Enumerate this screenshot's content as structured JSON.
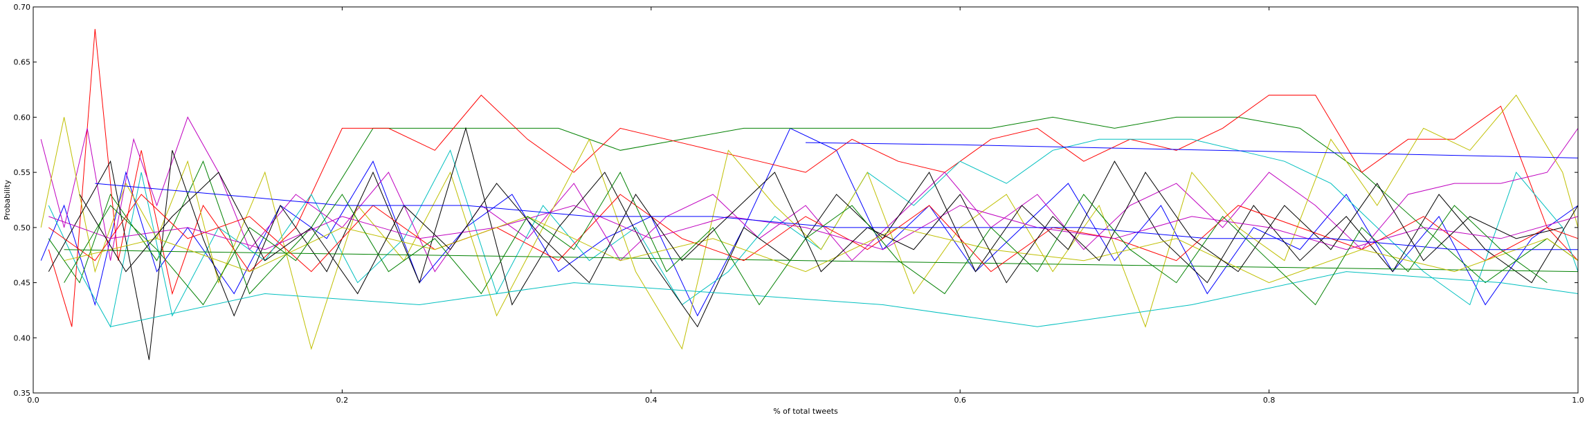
{
  "chart_data": {
    "type": "line",
    "title": "",
    "xlabel": "% of total tweets",
    "ylabel": "Probability",
    "xlim": [
      0.0,
      1.0
    ],
    "ylim": [
      0.35,
      0.7
    ],
    "x_ticks": [
      "0.0",
      "0.2",
      "0.4",
      "0.6",
      "0.8",
      "1.0"
    ],
    "y_ticks": [
      "0.35",
      "0.40",
      "0.45",
      "0.50",
      "0.55",
      "0.60",
      "0.65",
      "0.70"
    ],
    "grid": false,
    "legend": "none",
    "color_cycle": [
      "#0000ff",
      "#008000",
      "#ff0000",
      "#00bfbf",
      "#bf00bf",
      "#bfbf00",
      "#000000"
    ],
    "series": [
      {
        "x": [
          0.005,
          0.02,
          0.04,
          0.06,
          0.08,
          0.1,
          0.13,
          0.16,
          0.19,
          0.22,
          0.25,
          0.28,
          0.31,
          0.34,
          0.37,
          0.4,
          0.43,
          0.46,
          0.49,
          0.52,
          0.55,
          0.58,
          0.61,
          0.64,
          0.67,
          0.7,
          0.73,
          0.76,
          0.79,
          0.82,
          0.85,
          0.88,
          0.91,
          0.94,
          0.97,
          1.0
        ],
        "y": [
          0.47,
          0.52,
          0.43,
          0.55,
          0.46,
          0.5,
          0.44,
          0.52,
          0.49,
          0.56,
          0.45,
          0.5,
          0.53,
          0.46,
          0.49,
          0.51,
          0.42,
          0.5,
          0.59,
          0.57,
          0.48,
          0.52,
          0.46,
          0.5,
          0.54,
          0.47,
          0.52,
          0.44,
          0.5,
          0.48,
          0.53,
          0.46,
          0.51,
          0.43,
          0.49,
          0.52
        ]
      },
      {
        "x": [
          0.01,
          0.03,
          0.05,
          0.08,
          0.11,
          0.14,
          0.18,
          0.22,
          0.26,
          0.3,
          0.34,
          0.38,
          0.42,
          0.46,
          0.5,
          0.54,
          0.58,
          0.62,
          0.66,
          0.7,
          0.74,
          0.78,
          0.82,
          0.86,
          0.9,
          0.94,
          0.98,
          1.0
        ],
        "y": [
          0.49,
          0.45,
          0.53,
          0.47,
          0.56,
          0.44,
          0.5,
          0.59,
          0.59,
          0.59,
          0.59,
          0.57,
          0.58,
          0.59,
          0.59,
          0.59,
          0.59,
          0.59,
          0.6,
          0.59,
          0.6,
          0.6,
          0.59,
          0.55,
          0.5,
          0.45,
          0.49,
          0.47
        ]
      },
      {
        "x": [
          0.01,
          0.025,
          0.04,
          0.055,
          0.07,
          0.09,
          0.11,
          0.14,
          0.17,
          0.2,
          0.23,
          0.26,
          0.29,
          0.32,
          0.35,
          0.38,
          0.41,
          0.44,
          0.47,
          0.5,
          0.53,
          0.56,
          0.59,
          0.62,
          0.65,
          0.68,
          0.71,
          0.74,
          0.77,
          0.8,
          0.83,
          0.86,
          0.89,
          0.92,
          0.95,
          0.98,
          1.0
        ],
        "y": [
          0.48,
          0.41,
          0.68,
          0.47,
          0.57,
          0.44,
          0.52,
          0.46,
          0.5,
          0.59,
          0.59,
          0.57,
          0.62,
          0.58,
          0.55,
          0.59,
          0.58,
          0.57,
          0.56,
          0.55,
          0.58,
          0.56,
          0.55,
          0.58,
          0.59,
          0.56,
          0.58,
          0.57,
          0.59,
          0.62,
          0.62,
          0.55,
          0.58,
          0.58,
          0.61,
          0.5,
          0.47
        ]
      },
      {
        "x": [
          0.01,
          0.03,
          0.05,
          0.07,
          0.09,
          0.12,
          0.15,
          0.18,
          0.21,
          0.24,
          0.27,
          0.3,
          0.33,
          0.36,
          0.39,
          0.42,
          0.45,
          0.48,
          0.51,
          0.54,
          0.57,
          0.6,
          0.63,
          0.66,
          0.69,
          0.72,
          0.75,
          0.78,
          0.81,
          0.84,
          0.87,
          0.9,
          0.93,
          0.96,
          0.99,
          1.0
        ],
        "y": [
          0.52,
          0.46,
          0.41,
          0.55,
          0.42,
          0.5,
          0.47,
          0.53,
          0.45,
          0.49,
          0.57,
          0.44,
          0.52,
          0.47,
          0.5,
          0.43,
          0.46,
          0.51,
          0.48,
          0.55,
          0.52,
          0.56,
          0.54,
          0.57,
          0.58,
          0.58,
          0.58,
          0.57,
          0.56,
          0.54,
          0.5,
          0.46,
          0.43,
          0.55,
          0.5,
          0.46
        ]
      },
      {
        "x": [
          0.005,
          0.02,
          0.035,
          0.05,
          0.065,
          0.08,
          0.1,
          0.12,
          0.14,
          0.17,
          0.2,
          0.23,
          0.26,
          0.29,
          0.32,
          0.35,
          0.38,
          0.41,
          0.44,
          0.47,
          0.5,
          0.53,
          0.56,
          0.59,
          0.62,
          0.65,
          0.68,
          0.71,
          0.74,
          0.77,
          0.8,
          0.83,
          0.86,
          0.89,
          0.92,
          0.95,
          0.98,
          1.0
        ],
        "y": [
          0.58,
          0.5,
          0.59,
          0.47,
          0.58,
          0.52,
          0.6,
          0.55,
          0.48,
          0.53,
          0.5,
          0.55,
          0.46,
          0.52,
          0.49,
          0.54,
          0.47,
          0.51,
          0.53,
          0.49,
          0.52,
          0.47,
          0.51,
          0.55,
          0.5,
          0.53,
          0.48,
          0.52,
          0.54,
          0.5,
          0.55,
          0.52,
          0.48,
          0.53,
          0.54,
          0.54,
          0.55,
          0.59
        ]
      },
      {
        "x": [
          0.005,
          0.02,
          0.04,
          0.06,
          0.08,
          0.1,
          0.12,
          0.15,
          0.18,
          0.21,
          0.24,
          0.27,
          0.3,
          0.33,
          0.36,
          0.39,
          0.42,
          0.45,
          0.48,
          0.51,
          0.54,
          0.57,
          0.6,
          0.63,
          0.66,
          0.69,
          0.72,
          0.75,
          0.78,
          0.81,
          0.84,
          0.87,
          0.9,
          0.93,
          0.96,
          0.99,
          1.0
        ],
        "y": [
          0.5,
          0.6,
          0.46,
          0.54,
          0.49,
          0.56,
          0.45,
          0.55,
          0.39,
          0.52,
          0.47,
          0.55,
          0.42,
          0.5,
          0.58,
          0.46,
          0.39,
          0.57,
          0.52,
          0.48,
          0.55,
          0.44,
          0.5,
          0.53,
          0.46,
          0.52,
          0.41,
          0.55,
          0.5,
          0.47,
          0.58,
          0.52,
          0.59,
          0.57,
          0.62,
          0.55,
          0.5
        ]
      },
      {
        "x": [
          0.01,
          0.03,
          0.05,
          0.075,
          0.09,
          0.11,
          0.13,
          0.16,
          0.19,
          0.22,
          0.25,
          0.28,
          0.31,
          0.34,
          0.37,
          0.4,
          0.43,
          0.46,
          0.49,
          0.52,
          0.55,
          0.58,
          0.61,
          0.64,
          0.67,
          0.7,
          0.73,
          0.76,
          0.79,
          0.82,
          0.85,
          0.88,
          0.91,
          0.94,
          0.97,
          1.0
        ],
        "y": [
          0.46,
          0.51,
          0.56,
          0.38,
          0.57,
          0.49,
          0.42,
          0.52,
          0.46,
          0.55,
          0.45,
          0.59,
          0.43,
          0.5,
          0.55,
          0.47,
          0.41,
          0.5,
          0.47,
          0.53,
          0.49,
          0.55,
          0.46,
          0.52,
          0.48,
          0.56,
          0.49,
          0.45,
          0.52,
          0.47,
          0.51,
          0.46,
          0.53,
          0.48,
          0.45,
          0.52
        ]
      },
      {
        "x": [
          0.5,
          0.6,
          0.7,
          0.8,
          0.9,
          1.0
        ],
        "y": [
          0.577,
          0.575,
          0.572,
          0.569,
          0.566,
          0.563
        ]
      },
      {
        "x": [
          0.02,
          0.1,
          0.2,
          0.3,
          0.4,
          0.5,
          0.6,
          0.7,
          0.8,
          0.9,
          1.0
        ],
        "y": [
          0.48,
          0.478,
          0.476,
          0.474,
          0.472,
          0.47,
          0.468,
          0.466,
          0.464,
          0.462,
          0.46
        ]
      },
      {
        "x": [
          0.01,
          0.04,
          0.07,
          0.1,
          0.14,
          0.18,
          0.22,
          0.26,
          0.3,
          0.34,
          0.38,
          0.42,
          0.46,
          0.5,
          0.54,
          0.58,
          0.62,
          0.66,
          0.7,
          0.74,
          0.78,
          0.82,
          0.86,
          0.9,
          0.94,
          0.98,
          1.0
        ],
        "y": [
          0.5,
          0.47,
          0.53,
          0.49,
          0.51,
          0.46,
          0.52,
          0.48,
          0.5,
          0.47,
          0.53,
          0.49,
          0.47,
          0.51,
          0.48,
          0.52,
          0.46,
          0.5,
          0.49,
          0.47,
          0.52,
          0.5,
          0.48,
          0.51,
          0.47,
          0.5,
          0.49
        ]
      },
      {
        "x": [
          0.05,
          0.15,
          0.25,
          0.35,
          0.45,
          0.55,
          0.65,
          0.75,
          0.85,
          0.95,
          1.0
        ],
        "y": [
          0.41,
          0.44,
          0.43,
          0.45,
          0.44,
          0.43,
          0.41,
          0.43,
          0.46,
          0.45,
          0.44
        ]
      },
      {
        "x": [
          0.01,
          0.05,
          0.1,
          0.15,
          0.2,
          0.25,
          0.3,
          0.35,
          0.4,
          0.45,
          0.5,
          0.55,
          0.6,
          0.65,
          0.7,
          0.75,
          0.8,
          0.85,
          0.9,
          0.95,
          1.0
        ],
        "y": [
          0.51,
          0.49,
          0.5,
          0.48,
          0.51,
          0.49,
          0.5,
          0.52,
          0.49,
          0.51,
          0.5,
          0.48,
          0.52,
          0.5,
          0.49,
          0.51,
          0.5,
          0.48,
          0.5,
          0.49,
          0.51
        ]
      },
      {
        "x": [
          0.02,
          0.08,
          0.14,
          0.2,
          0.26,
          0.32,
          0.38,
          0.44,
          0.5,
          0.56,
          0.62,
          0.68,
          0.74,
          0.8,
          0.86,
          0.92,
          0.98,
          1.0
        ],
        "y": [
          0.47,
          0.49,
          0.46,
          0.5,
          0.48,
          0.51,
          0.47,
          0.49,
          0.46,
          0.5,
          0.48,
          0.47,
          0.49,
          0.45,
          0.48,
          0.46,
          0.49,
          0.47
        ]
      },
      {
        "x": [
          0.03,
          0.06,
          0.09,
          0.12,
          0.15,
          0.18,
          0.21,
          0.24,
          0.27,
          0.3,
          0.33,
          0.36,
          0.39,
          0.42,
          0.45,
          0.48,
          0.51,
          0.54,
          0.57,
          0.6,
          0.63,
          0.66,
          0.69,
          0.72,
          0.75,
          0.78,
          0.81,
          0.84,
          0.87,
          0.9,
          0.93,
          0.96,
          0.99
        ],
        "y": [
          0.53,
          0.46,
          0.51,
          0.55,
          0.47,
          0.5,
          0.44,
          0.52,
          0.48,
          0.54,
          0.49,
          0.45,
          0.53,
          0.47,
          0.51,
          0.55,
          0.46,
          0.5,
          0.48,
          0.53,
          0.45,
          0.51,
          0.47,
          0.55,
          0.49,
          0.46,
          0.52,
          0.48,
          0.54,
          0.47,
          0.51,
          0.49,
          0.5
        ]
      },
      {
        "x": [
          0.04,
          0.12,
          0.2,
          0.28,
          0.36,
          0.44,
          0.52,
          0.6,
          0.68,
          0.76,
          0.84,
          0.92,
          1.0
        ],
        "y": [
          0.54,
          0.53,
          0.52,
          0.52,
          0.51,
          0.51,
          0.5,
          0.5,
          0.5,
          0.49,
          0.49,
          0.48,
          0.48
        ]
      },
      {
        "x": [
          0.02,
          0.05,
          0.08,
          0.11,
          0.14,
          0.17,
          0.2,
          0.23,
          0.26,
          0.29,
          0.32,
          0.35,
          0.38,
          0.41,
          0.44,
          0.47,
          0.5,
          0.53,
          0.56,
          0.59,
          0.62,
          0.65,
          0.68,
          0.71,
          0.74,
          0.77,
          0.8,
          0.83,
          0.86,
          0.89,
          0.92,
          0.95,
          0.98
        ],
        "y": [
          0.45,
          0.52,
          0.48,
          0.43,
          0.5,
          0.47,
          0.53,
          0.46,
          0.49,
          0.44,
          0.51,
          0.48,
          0.55,
          0.46,
          0.5,
          0.43,
          0.49,
          0.52,
          0.47,
          0.44,
          0.5,
          0.46,
          0.53,
          0.48,
          0.45,
          0.51,
          0.47,
          0.43,
          0.5,
          0.46,
          0.52,
          0.48,
          0.45
        ]
      }
    ]
  }
}
